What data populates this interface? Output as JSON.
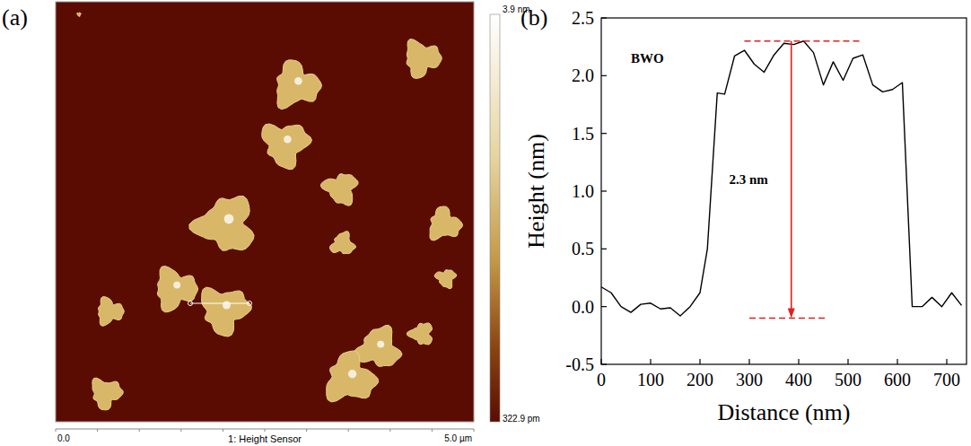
{
  "chart_data": [
    {
      "type": "image",
      "panel_label": "(a)",
      "caption": "1: Height Sensor",
      "x_axis_labels": [
        "0.0",
        "5.0 µm"
      ],
      "colorbar_labels": [
        "3.9 nm",
        "322.9 pm"
      ]
    },
    {
      "type": "line",
      "panel_label": "(b)",
      "x_label": "Distance (nm)",
      "y_label": "Height (nm)",
      "x": [
        0,
        20,
        40,
        60,
        80,
        100,
        120,
        140,
        160,
        180,
        200,
        215,
        235,
        250,
        270,
        290,
        310,
        330,
        350,
        370,
        390,
        410,
        430,
        450,
        470,
        490,
        510,
        530,
        550,
        570,
        590,
        610,
        630,
        650,
        670,
        690,
        710,
        730
      ],
      "values": [
        0.17,
        0.12,
        0.0,
        -0.05,
        0.02,
        0.03,
        -0.02,
        -0.01,
        -0.08,
        0.0,
        0.12,
        0.5,
        1.85,
        1.84,
        2.17,
        2.22,
        2.1,
        2.03,
        2.18,
        2.28,
        2.27,
        2.3,
        2.2,
        1.92,
        2.12,
        1.96,
        2.15,
        2.18,
        1.92,
        1.86,
        1.88,
        1.94,
        0.0,
        0.0,
        0.08,
        0.0,
        0.12,
        0.01
      ],
      "color": "#000000",
      "xlim": [
        0,
        740
      ],
      "xticks": [
        0,
        100,
        200,
        300,
        400,
        500,
        600,
        700
      ],
      "ylim": [
        -0.5,
        2.5
      ],
      "yticks": [
        -0.5,
        {
          "value": 0,
          "label": "0.0"
        },
        0.5,
        {
          "value": 1,
          "label": "1.0"
        },
        1.5,
        {
          "value": 2,
          "label": "2.0"
        },
        2.5
      ],
      "annotations": [
        {
          "text": "BWO",
          "x": 60,
          "y": 2.15
        },
        {
          "text": "2.3 nm",
          "x": 385,
          "y_from": 2.3,
          "y_to": -0.1
        }
      ],
      "reference_lines": [
        {
          "y": 2.3,
          "x": [
            290,
            530
          ]
        },
        {
          "y": -0.1,
          "x": [
            300,
            460
          ]
        }
      ]
    }
  ]
}
